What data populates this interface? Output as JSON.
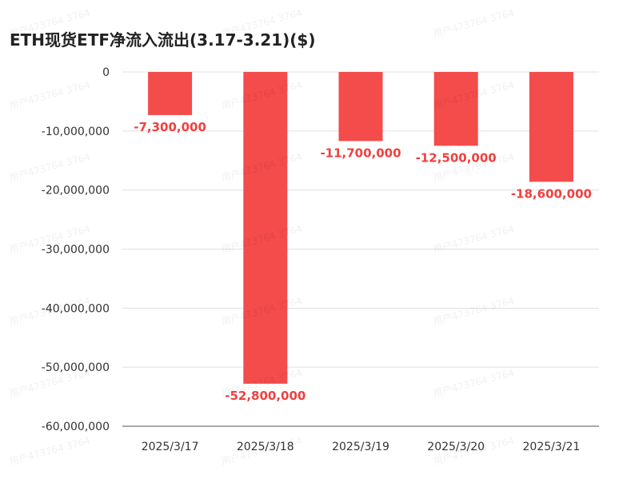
{
  "watermark": "用户473764 3764",
  "chart_data": {
    "type": "bar",
    "title": "ETH现货ETF净流入流出(3.17-3.21)($)",
    "categories": [
      "2025/3/17",
      "2025/3/18",
      "2025/3/19",
      "2025/3/20",
      "2025/3/21"
    ],
    "values": [
      -7300000,
      -52800000,
      -11700000,
      -12500000,
      -18600000
    ],
    "value_labels": [
      "-7,300,000",
      "-52,800,000",
      "-11,700,000",
      "-12,500,000",
      "-18,600,000"
    ],
    "y_ticks": [
      0,
      -10000000,
      -20000000,
      -30000000,
      -40000000,
      -50000000,
      -60000000
    ],
    "y_tick_labels": [
      "0",
      "-10,000,000",
      "-20,000,000",
      "-30,000,000",
      "-40,000,000",
      "-50,000,000",
      "-60,000,000"
    ],
    "ylim": [
      -60000000,
      0
    ],
    "xlabel": "",
    "ylabel": "",
    "grid": true,
    "colors": {
      "bar": "#f44b4b",
      "label": "#f04040",
      "grid": "#e0e0e0",
      "axis": "#555555"
    }
  }
}
